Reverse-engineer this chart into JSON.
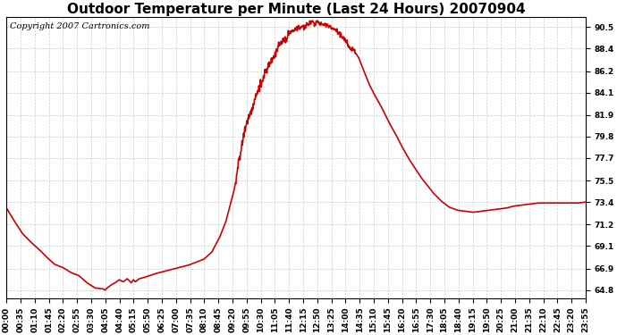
{
  "title": "Outdoor Temperature per Minute (Last 24 Hours) 20070904",
  "copyright_text": "Copyright 2007 Cartronics.com",
  "line_color": "#cc0000",
  "bg_color": "#ffffff",
  "plot_bg_color": "#ffffff",
  "grid_color": "#cccccc",
  "yticks": [
    64.8,
    66.9,
    69.1,
    71.2,
    73.4,
    75.5,
    77.7,
    79.8,
    81.9,
    84.1,
    86.2,
    88.4,
    90.5
  ],
  "xtick_labels": [
    "00:00",
    "00:35",
    "01:10",
    "01:45",
    "02:20",
    "02:55",
    "03:30",
    "04:05",
    "04:40",
    "05:15",
    "05:50",
    "06:25",
    "07:00",
    "07:35",
    "08:10",
    "08:45",
    "09:20",
    "09:55",
    "10:30",
    "11:05",
    "11:40",
    "12:15",
    "12:50",
    "13:25",
    "14:00",
    "14:35",
    "15:10",
    "15:45",
    "16:20",
    "16:55",
    "17:30",
    "18:05",
    "18:40",
    "19:15",
    "19:50",
    "20:25",
    "21:00",
    "21:35",
    "22:10",
    "22:45",
    "23:20",
    "23:55"
  ],
  "ylim": [
    64.0,
    91.5
  ],
  "title_fontsize": 11,
  "copyright_fontsize": 7,
  "tick_fontsize": 6.5,
  "line_width": 1.2,
  "key_points": [
    [
      0,
      72.8
    ],
    [
      20,
      71.5
    ],
    [
      40,
      70.3
    ],
    [
      60,
      69.5
    ],
    [
      80,
      68.8
    ],
    [
      100,
      68.0
    ],
    [
      120,
      67.3
    ],
    [
      140,
      67.0
    ],
    [
      160,
      66.5
    ],
    [
      180,
      66.2
    ],
    [
      200,
      65.5
    ],
    [
      220,
      65.0
    ],
    [
      240,
      64.9
    ],
    [
      245,
      64.8
    ],
    [
      250,
      65.0
    ],
    [
      260,
      65.3
    ],
    [
      270,
      65.5
    ],
    [
      280,
      65.8
    ],
    [
      290,
      65.6
    ],
    [
      300,
      65.9
    ],
    [
      310,
      65.5
    ],
    [
      315,
      65.8
    ],
    [
      320,
      65.6
    ],
    [
      330,
      65.9
    ],
    [
      340,
      66.0
    ],
    [
      355,
      66.2
    ],
    [
      370,
      66.4
    ],
    [
      390,
      66.6
    ],
    [
      410,
      66.8
    ],
    [
      430,
      67.0
    ],
    [
      450,
      67.2
    ],
    [
      470,
      67.5
    ],
    [
      490,
      67.8
    ],
    [
      510,
      68.5
    ],
    [
      530,
      70.0
    ],
    [
      545,
      71.5
    ],
    [
      555,
      73.0
    ],
    [
      565,
      74.5
    ],
    [
      570,
      75.5
    ],
    [
      575,
      77.0
    ],
    [
      580,
      78.0
    ],
    [
      585,
      79.0
    ],
    [
      590,
      80.0
    ],
    [
      595,
      81.0
    ],
    [
      600,
      81.5
    ],
    [
      605,
      82.0
    ],
    [
      610,
      82.5
    ],
    [
      615,
      83.2
    ],
    [
      620,
      83.8
    ],
    [
      625,
      84.3
    ],
    [
      630,
      84.8
    ],
    [
      635,
      85.2
    ],
    [
      640,
      85.8
    ],
    [
      645,
      86.2
    ],
    [
      650,
      86.6
    ],
    [
      655,
      87.0
    ],
    [
      660,
      87.4
    ],
    [
      665,
      87.8
    ],
    [
      670,
      88.2
    ],
    [
      675,
      88.5
    ],
    [
      680,
      88.8
    ],
    [
      685,
      89.0
    ],
    [
      690,
      89.3
    ],
    [
      695,
      89.5
    ],
    [
      700,
      89.8
    ],
    [
      705,
      90.0
    ],
    [
      710,
      90.1
    ],
    [
      715,
      90.3
    ],
    [
      720,
      90.4
    ],
    [
      725,
      90.5
    ],
    [
      730,
      90.4
    ],
    [
      735,
      90.6
    ],
    [
      740,
      90.5
    ],
    [
      745,
      90.7
    ],
    [
      750,
      90.8
    ],
    [
      755,
      90.9
    ],
    [
      760,
      91.0
    ],
    [
      765,
      90.8
    ],
    [
      770,
      90.9
    ],
    [
      775,
      91.0
    ],
    [
      780,
      90.8
    ],
    [
      785,
      90.7
    ],
    [
      790,
      90.9
    ],
    [
      795,
      90.7
    ],
    [
      800,
      90.6
    ],
    [
      805,
      90.5
    ],
    [
      810,
      90.4
    ],
    [
      815,
      90.3
    ],
    [
      820,
      90.2
    ],
    [
      825,
      90.0
    ],
    [
      830,
      89.8
    ],
    [
      835,
      89.5
    ],
    [
      840,
      89.2
    ],
    [
      845,
      88.9
    ],
    [
      850,
      88.6
    ],
    [
      855,
      88.3
    ],
    [
      860,
      88.5
    ],
    [
      865,
      88.2
    ],
    [
      870,
      87.8
    ],
    [
      875,
      87.5
    ],
    [
      880,
      87.0
    ],
    [
      885,
      86.5
    ],
    [
      890,
      86.0
    ],
    [
      895,
      85.5
    ],
    [
      900,
      85.0
    ],
    [
      910,
      84.2
    ],
    [
      920,
      83.5
    ],
    [
      930,
      82.8
    ],
    [
      940,
      82.0
    ],
    [
      950,
      81.2
    ],
    [
      960,
      80.5
    ],
    [
      970,
      79.8
    ],
    [
      980,
      79.0
    ],
    [
      990,
      78.3
    ],
    [
      1000,
      77.6
    ],
    [
      1010,
      77.0
    ],
    [
      1020,
      76.4
    ],
    [
      1030,
      75.8
    ],
    [
      1040,
      75.3
    ],
    [
      1050,
      74.8
    ],
    [
      1060,
      74.3
    ],
    [
      1070,
      73.9
    ],
    [
      1080,
      73.5
    ],
    [
      1090,
      73.2
    ],
    [
      1100,
      72.9
    ],
    [
      1120,
      72.6
    ],
    [
      1140,
      72.5
    ],
    [
      1160,
      72.4
    ],
    [
      1180,
      72.5
    ],
    [
      1200,
      72.6
    ],
    [
      1220,
      72.7
    ],
    [
      1240,
      72.8
    ],
    [
      1260,
      73.0
    ],
    [
      1280,
      73.1
    ],
    [
      1300,
      73.2
    ],
    [
      1320,
      73.3
    ],
    [
      1340,
      73.3
    ],
    [
      1360,
      73.3
    ],
    [
      1380,
      73.3
    ],
    [
      1400,
      73.3
    ],
    [
      1420,
      73.3
    ],
    [
      1439,
      73.4
    ]
  ]
}
